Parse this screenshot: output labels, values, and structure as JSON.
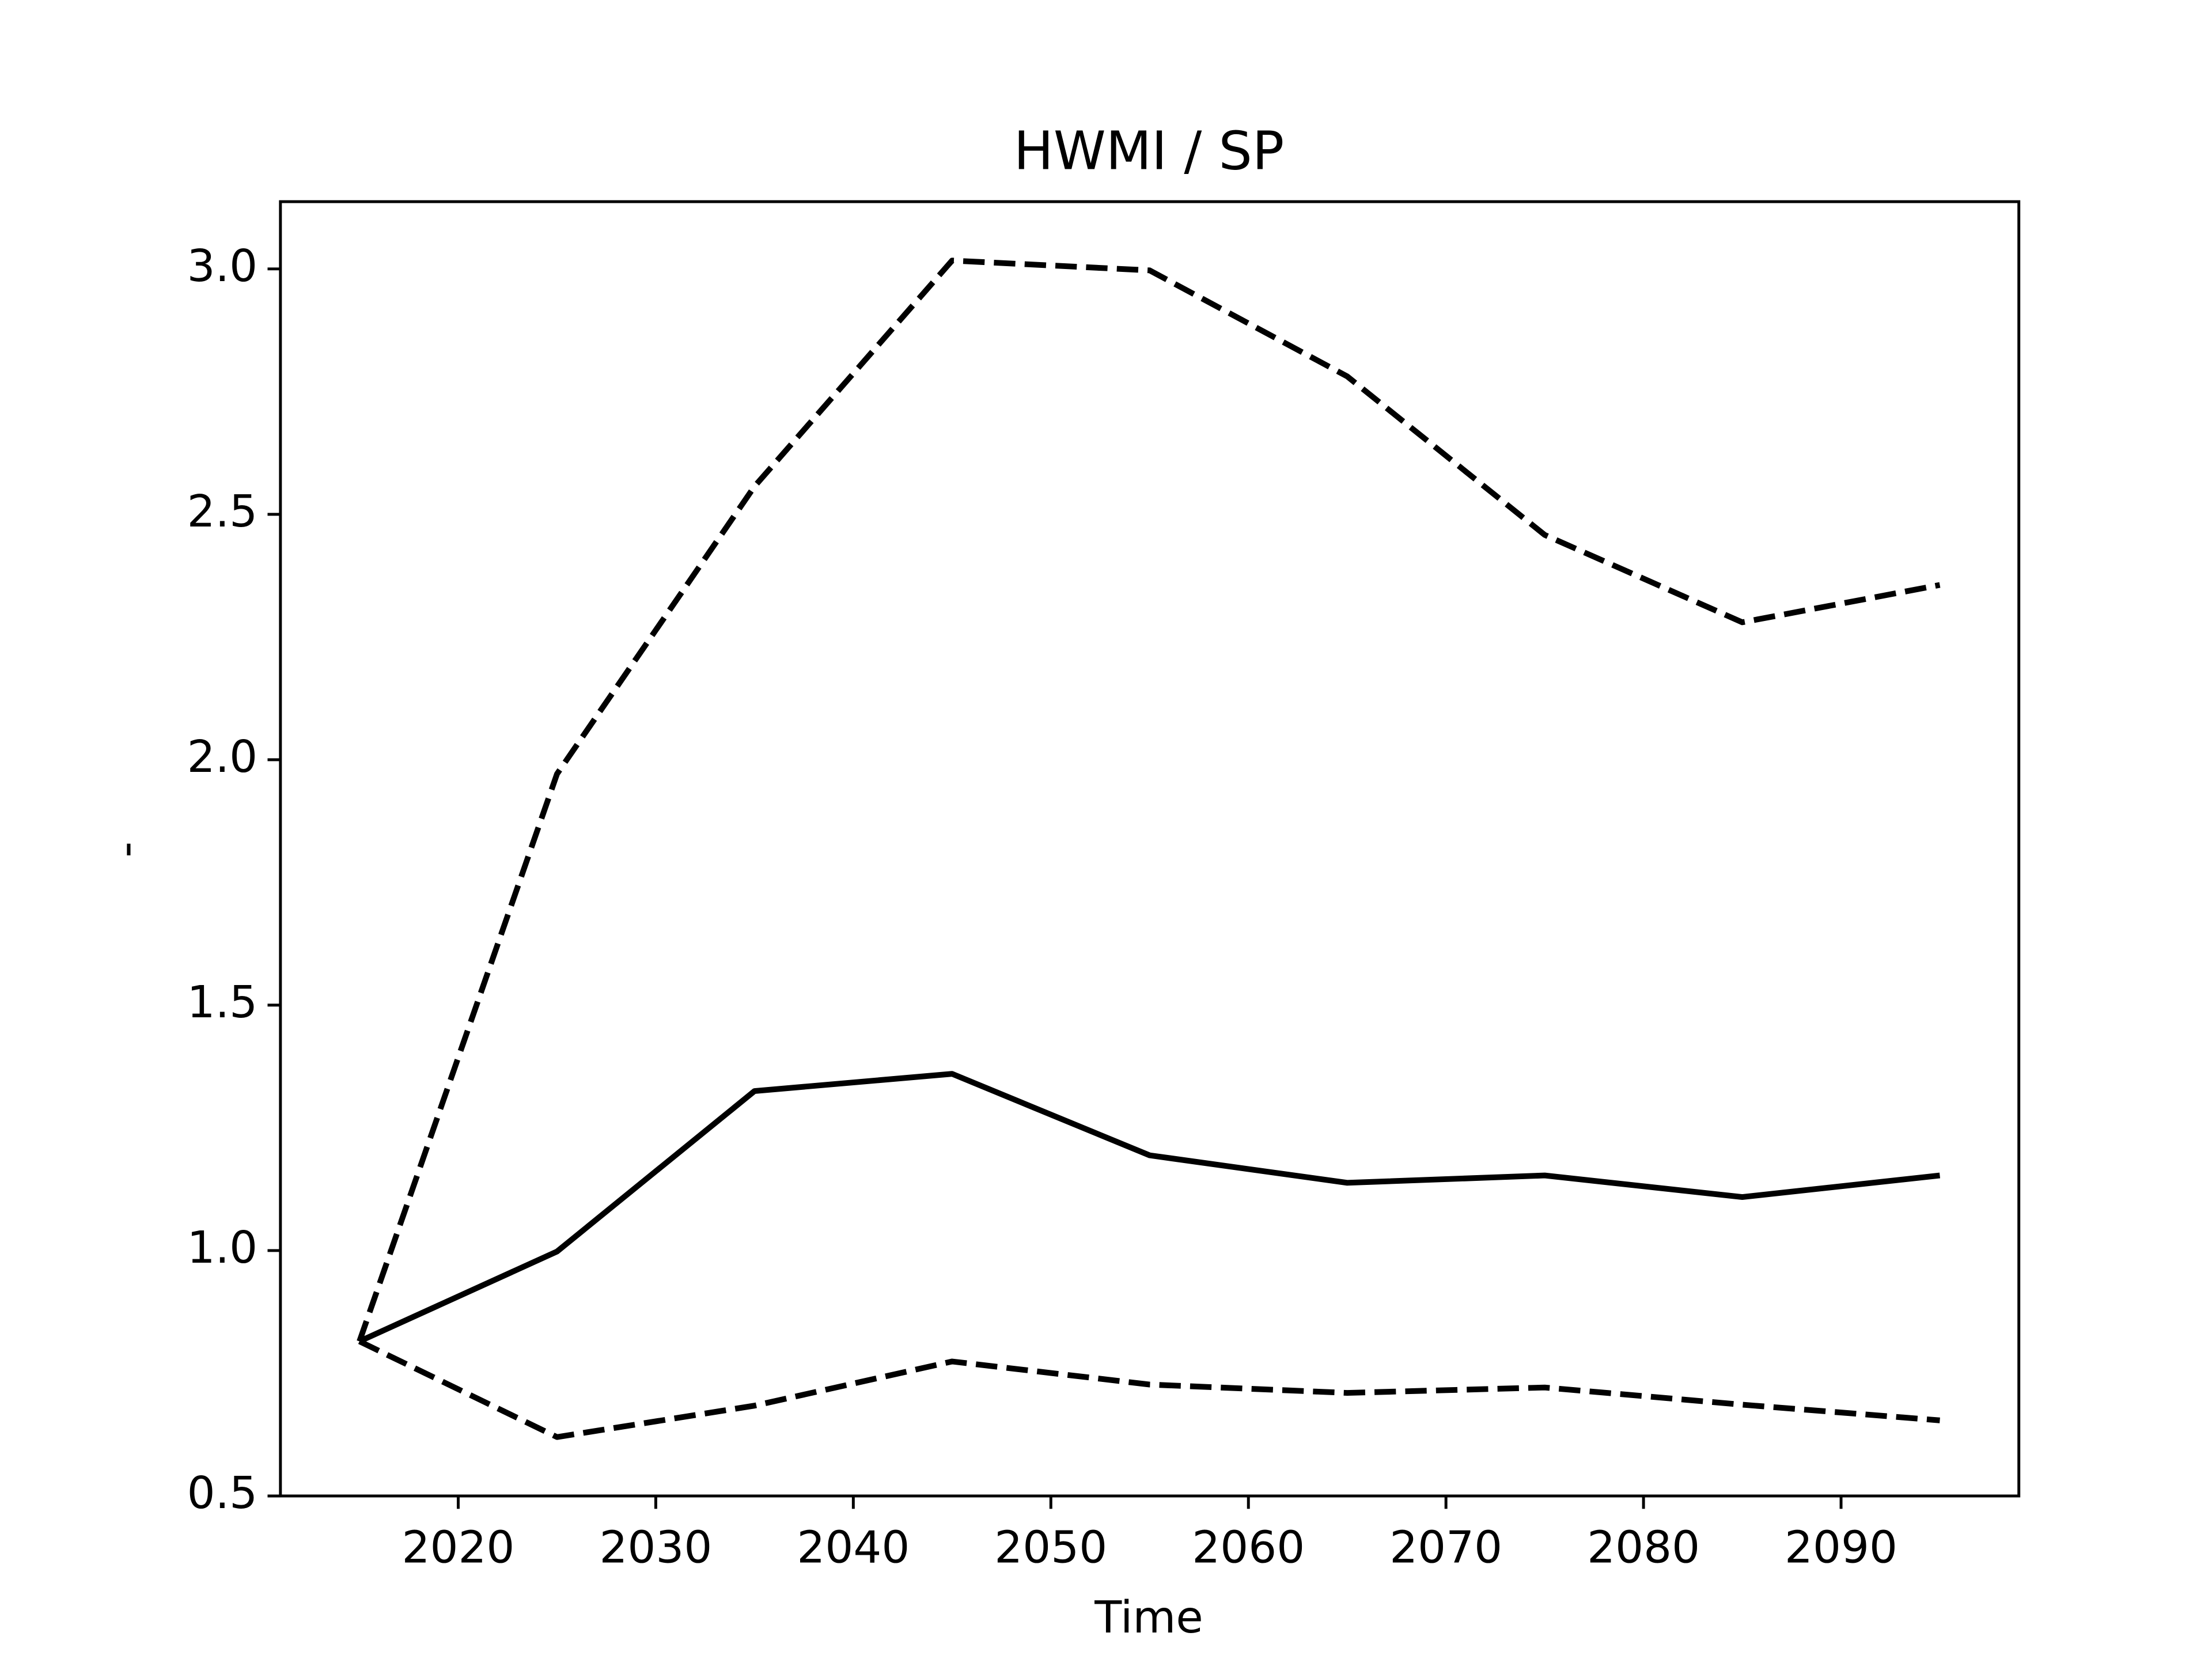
{
  "chart_data": {
    "type": "line",
    "title": "HWMI / SP",
    "xlabel": "Time",
    "ylabel": "-",
    "x": [
      2015,
      2025,
      2035,
      2045,
      2055,
      2065,
      2075,
      2085,
      2095
    ],
    "series": [
      {
        "color": "#000000",
        "dash": "solid",
        "values": [
          0.815,
          0.998,
          1.325,
          1.36,
          1.194,
          1.138,
          1.153,
          1.109,
          1.153
        ]
      },
      {
        "color": "#000000",
        "dash": "dashed",
        "values": [
          0.815,
          1.971,
          2.557,
          3.017,
          2.997,
          2.781,
          2.458,
          2.28,
          2.356
        ]
      },
      {
        "color": "#000000",
        "dash": "dashed",
        "values": [
          0.815,
          0.62,
          0.684,
          0.774,
          0.727,
          0.71,
          0.721,
          0.686,
          0.654
        ]
      }
    ],
    "xlim": [
      2011,
      2099
    ],
    "ylim": [
      0.5,
      3.137
    ],
    "xticks": [
      2020,
      2030,
      2040,
      2050,
      2060,
      2070,
      2080,
      2090
    ],
    "yticks": [
      0.5,
      {
        "value": 1,
        "label": "1.0"
      },
      1.5,
      {
        "value": 2,
        "label": "2.0"
      },
      2.5,
      {
        "value": 3,
        "label": "3.0"
      }
    ],
    "grid": false
  }
}
